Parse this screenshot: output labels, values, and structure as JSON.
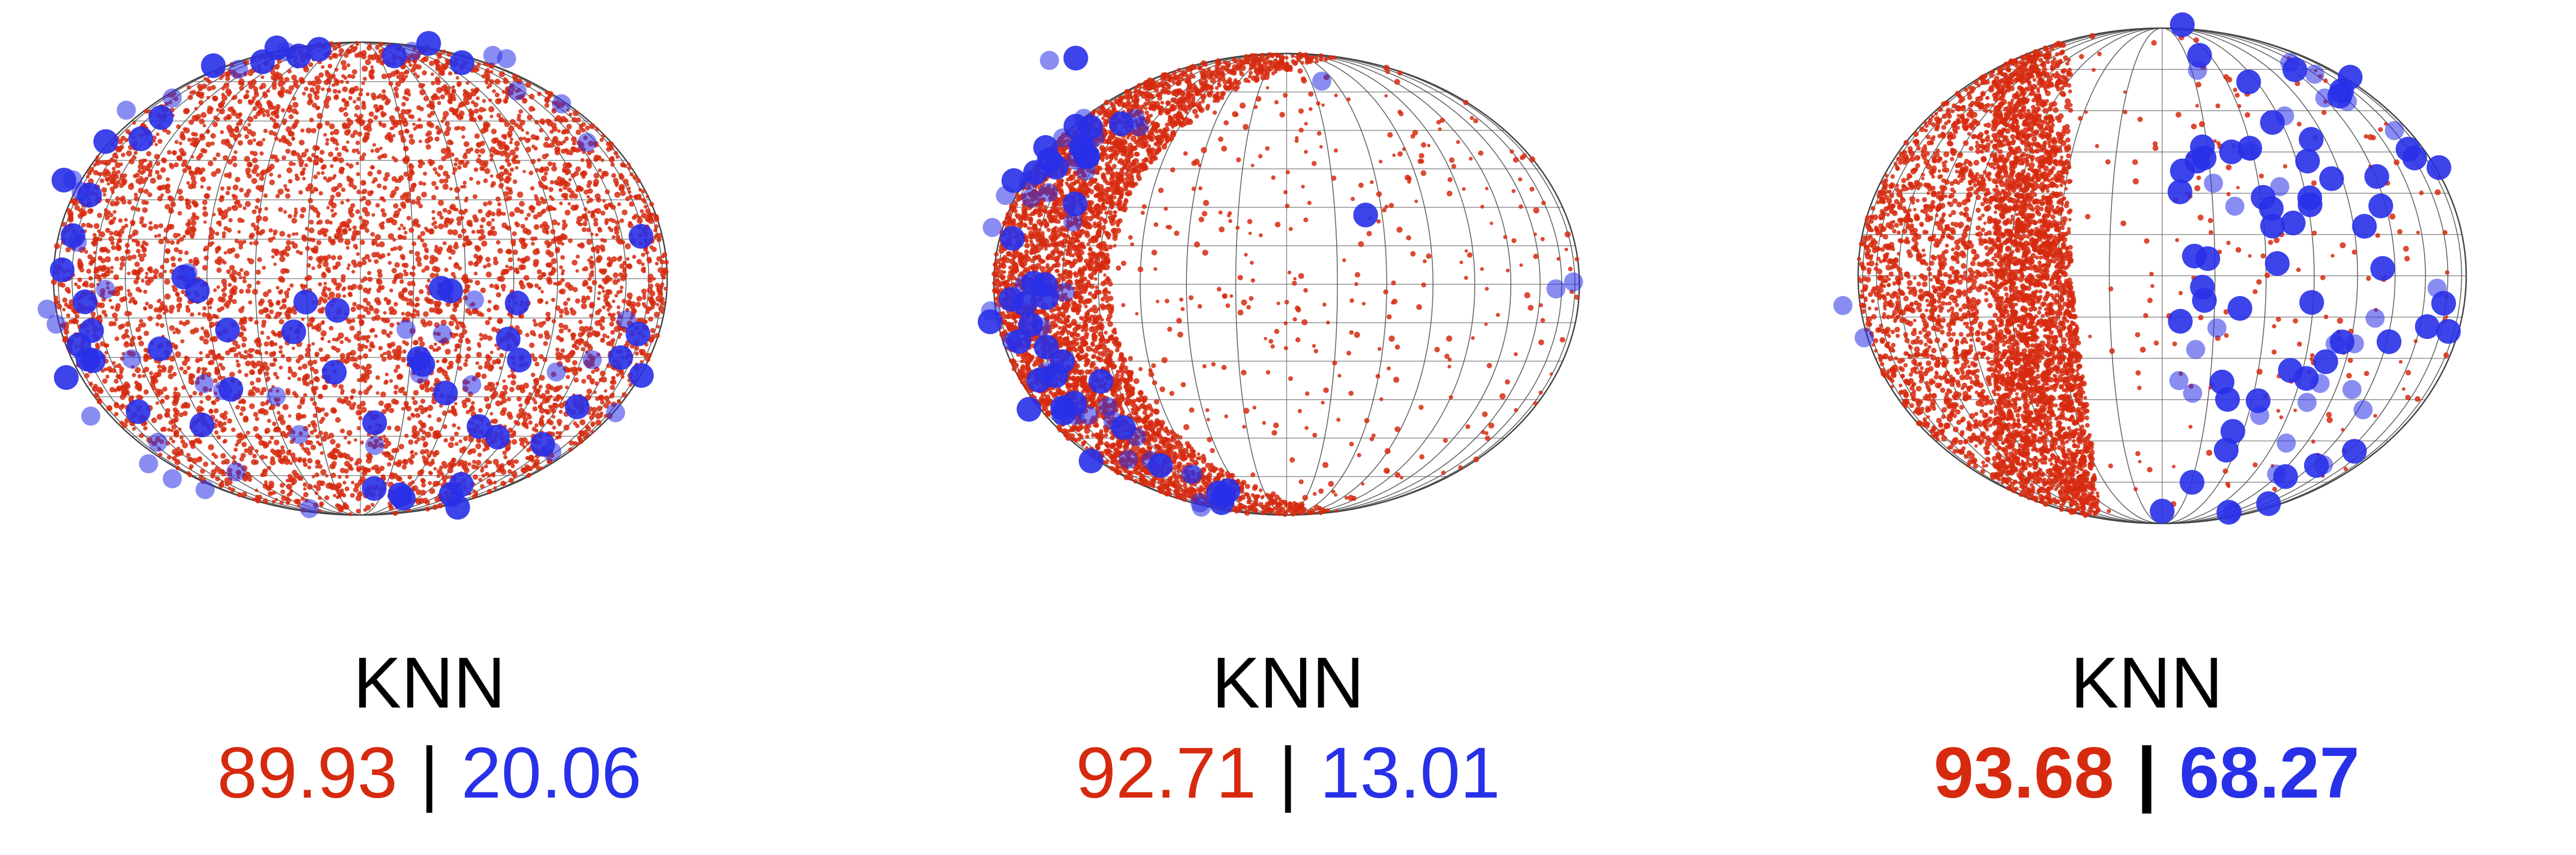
{
  "colors": {
    "red": "#d62a0f",
    "blue": "#2830e8",
    "grid": "#444444"
  },
  "panels": [
    {
      "title": "KNN",
      "red_score": "89.93",
      "sep": "|",
      "blue_score": "20.06",
      "bold": false
    },
    {
      "title": "KNN",
      "red_score": "92.71",
      "sep": "|",
      "blue_score": "13.01",
      "bold": false
    },
    {
      "title": "KNN",
      "red_score": "93.68",
      "sep": "|",
      "blue_score": "68.27",
      "bold": true
    }
  ]
}
